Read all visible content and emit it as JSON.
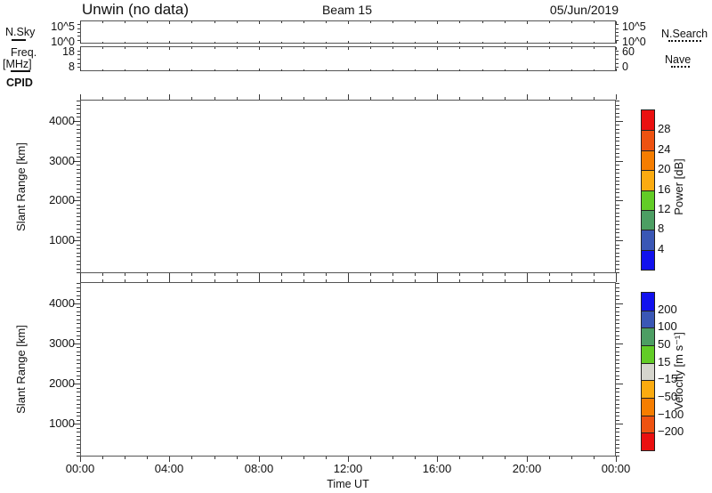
{
  "header": {
    "title": "Unwin (no data)",
    "beam": "Beam 15",
    "date": "05/Jun/2019"
  },
  "labels": {
    "cpid": "CPID"
  },
  "x_axis": {
    "label": "Time UT",
    "tick_labels": [
      "00:00",
      "04:00",
      "08:00",
      "12:00",
      "16:00",
      "20:00",
      "00:00"
    ],
    "tick_hours": [
      0,
      4,
      8,
      12,
      16,
      20,
      24
    ],
    "minor_tick_interval_hours": 1,
    "range_hours": [
      0,
      24
    ]
  },
  "chart_data": [
    {
      "id": "nsky",
      "type": "line",
      "ylabel": "N.Sky",
      "ylabel_line_style": "solid",
      "yticks_left": [
        "10^5",
        "10^0"
      ],
      "yticks_right": [
        "10^5",
        "10^0"
      ],
      "right_label": "N.Search",
      "right_label_line_style": "dotted",
      "series": [],
      "no_data": true
    },
    {
      "id": "freq",
      "type": "line",
      "ylabel_lines": [
        "Freq.",
        "[MHz]"
      ],
      "ylabel_line_style": "solid",
      "yticks_left": [
        "18",
        "8"
      ],
      "yticks_right": [
        "60",
        "0"
      ],
      "right_label": "Nave",
      "right_label_line_style": "dotted",
      "series": [],
      "no_data": true
    },
    {
      "id": "power",
      "type": "heatmap",
      "ylabel": "Slant Range [km]",
      "ylim": [
        180,
        4530
      ],
      "ytick_values": [
        1000,
        2000,
        3000,
        4000
      ],
      "ytick_labels": [
        "1000",
        "2000",
        "3000",
        "4000"
      ],
      "minor_ytick_km": 100,
      "colorbar": "power",
      "values": [],
      "no_data": true
    },
    {
      "id": "velocity",
      "type": "heatmap",
      "ylabel": "Slant Range [km]",
      "ylim": [
        180,
        4530
      ],
      "ytick_values": [
        1000,
        2000,
        3000,
        4000
      ],
      "ytick_labels": [
        "1000",
        "2000",
        "3000",
        "4000"
      ],
      "minor_ytick_km": 100,
      "colorbar": "velocity",
      "values": [],
      "no_data": true
    }
  ],
  "colorbars": {
    "power": {
      "label": "Power [dB]",
      "tick_labels": [
        "28",
        "24",
        "20",
        "16",
        "12",
        "8",
        "4"
      ],
      "segment_colors_top_to_bottom": [
        "#ea1010",
        "#ee5211",
        "#f57d00",
        "#fbab10",
        "#62cc26",
        "#4c9e63",
        "#3a57b5",
        "#1111ee"
      ]
    },
    "velocity": {
      "label": "Velocity [m s⁻¹]",
      "tick_labels": [
        "200",
        "100",
        "50",
        "15",
        "−15",
        "−50",
        "−100",
        "−200"
      ],
      "segment_colors_top_to_bottom": [
        "#1111ee",
        "#3a57b5",
        "#4c9e63",
        "#62cc26",
        "#d5d5cd",
        "#fbab10",
        "#f57d00",
        "#ee5211",
        "#ea1010"
      ]
    }
  }
}
